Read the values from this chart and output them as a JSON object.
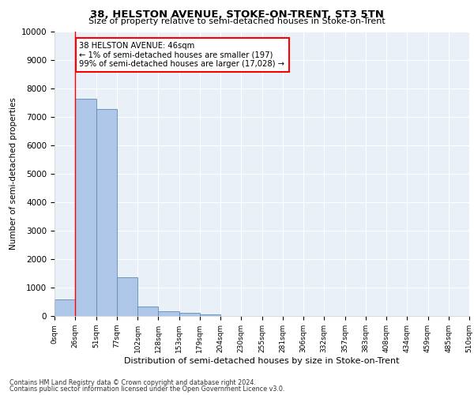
{
  "title": "38, HELSTON AVENUE, STOKE-ON-TRENT, ST3 5TN",
  "subtitle": "Size of property relative to semi-detached houses in Stoke-on-Trent",
  "xlabel": "Distribution of semi-detached houses by size in Stoke-on-Trent",
  "ylabel": "Number of semi-detached properties",
  "bar_values": [
    570,
    7650,
    7280,
    1370,
    320,
    155,
    100,
    60,
    0,
    0,
    0,
    0,
    0,
    0,
    0,
    0,
    0,
    0,
    0,
    0
  ],
  "bar_color": "#aec6e8",
  "bar_edge_color": "#5b8db8",
  "tick_labels": [
    "0sqm",
    "26sqm",
    "51sqm",
    "77sqm",
    "102sqm",
    "128sqm",
    "153sqm",
    "179sqm",
    "204sqm",
    "230sqm",
    "255sqm",
    "281sqm",
    "306sqm",
    "332sqm",
    "357sqm",
    "383sqm",
    "408sqm",
    "434sqm",
    "459sqm",
    "485sqm",
    "510sqm"
  ],
  "annotation_box_text": "38 HELSTON AVENUE: 46sqm\n← 1% of semi-detached houses are smaller (197)\n99% of semi-detached houses are larger (17,028) →",
  "property_line_x": 1,
  "ylim": [
    0,
    10000
  ],
  "yticks": [
    0,
    1000,
    2000,
    3000,
    4000,
    5000,
    6000,
    7000,
    8000,
    9000,
    10000
  ],
  "background_color": "#eaf0f8",
  "grid_color": "#ffffff",
  "footer_line1": "Contains HM Land Registry data © Crown copyright and database right 2024.",
  "footer_line2": "Contains public sector information licensed under the Open Government Licence v3.0."
}
